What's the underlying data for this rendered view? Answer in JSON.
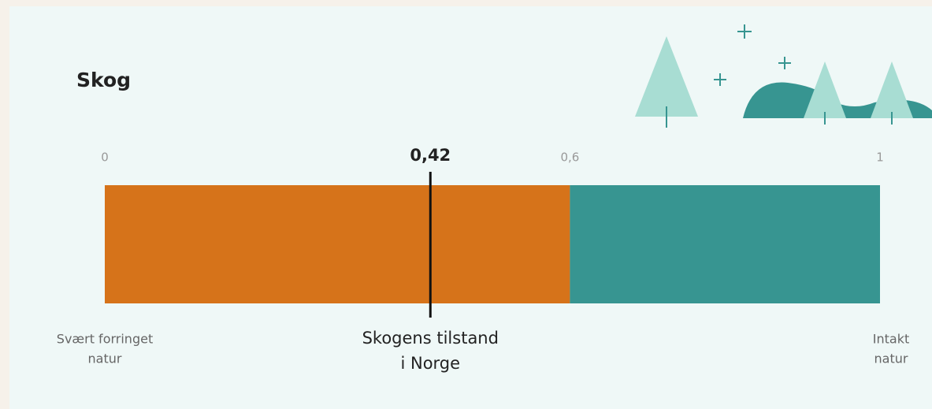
{
  "chart_data": {
    "type": "range-gauge",
    "title": "Skog",
    "xlim": [
      0,
      1
    ],
    "xticks": [
      0,
      {
        "value": 0.6,
        "label": "0,6"
      },
      1
    ],
    "bands": [
      {
        "from": 0,
        "to": 0.6,
        "color": "#d6731a"
      },
      {
        "from": 0.6,
        "to": 1,
        "color": "#379591"
      }
    ],
    "marker": {
      "value": 0.42,
      "label": "0,42",
      "name": [
        "Skogens tilstand",
        "i Norge"
      ]
    },
    "left_label": [
      "Svært forringet",
      "natur"
    ],
    "right_label": [
      "Intakt",
      "natur"
    ]
  }
}
